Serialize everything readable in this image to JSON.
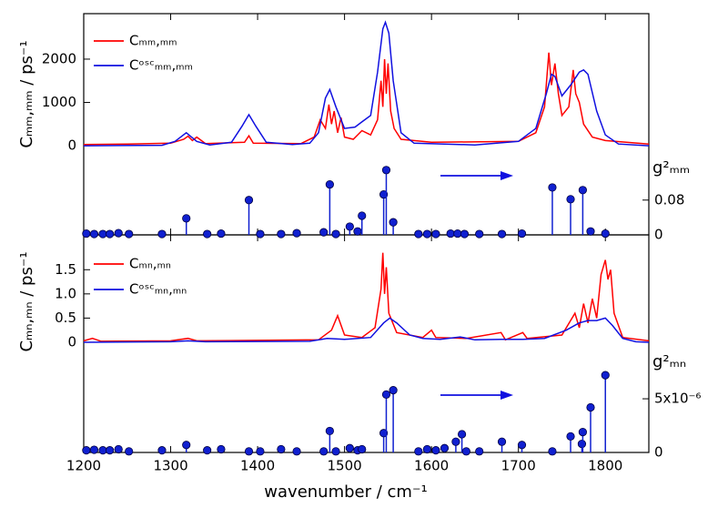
{
  "chart_data": [
    {
      "type": "line",
      "ylabel": "Cₘₘ,ₘₘ / ps⁻¹",
      "ylim": [
        -250,
        3050
      ],
      "yticks": [
        0,
        1000,
        2000
      ],
      "series": [
        {
          "name": "Cₘₘ,ₘₘ",
          "color": "#ff0000",
          "x": [
            1200,
            1250,
            1300,
            1315,
            1320,
            1325,
            1330,
            1340,
            1385,
            1390,
            1395,
            1450,
            1465,
            1472,
            1478,
            1482,
            1485,
            1488,
            1492,
            1496,
            1500,
            1510,
            1520,
            1530,
            1538,
            1542,
            1544,
            1546,
            1548,
            1550,
            1553,
            1557,
            1565,
            1600,
            1700,
            1720,
            1730,
            1735,
            1738,
            1742,
            1746,
            1750,
            1758,
            1763,
            1766,
            1770,
            1775,
            1785,
            1800,
            1850
          ],
          "values": [
            30,
            40,
            60,
            150,
            220,
            120,
            200,
            50,
            80,
            230,
            60,
            50,
            200,
            600,
            400,
            950,
            500,
            800,
            300,
            650,
            200,
            150,
            350,
            250,
            600,
            1500,
            900,
            2000,
            1200,
            1900,
            800,
            400,
            150,
            80,
            100,
            300,
            900,
            2150,
            1400,
            1900,
            1200,
            700,
            900,
            1750,
            1200,
            1000,
            500,
            200,
            120,
            40
          ]
        },
        {
          "name": "Cᵒˢᶜₘₘ,ₘₘ",
          "color": "#1010e0",
          "x": [
            1200,
            1290,
            1305,
            1318,
            1330,
            1345,
            1370,
            1382,
            1390,
            1398,
            1410,
            1440,
            1460,
            1470,
            1478,
            1483,
            1490,
            1500,
            1512,
            1520,
            1530,
            1538,
            1544,
            1547,
            1551,
            1556,
            1565,
            1580,
            1650,
            1700,
            1720,
            1732,
            1738,
            1742,
            1750,
            1760,
            1770,
            1775,
            1780,
            1790,
            1800,
            1815,
            1850
          ],
          "values": [
            0,
            10,
            100,
            300,
            100,
            20,
            80,
            450,
            720,
            450,
            80,
            30,
            60,
            300,
            1100,
            1300,
            900,
            400,
            430,
            550,
            700,
            1700,
            2700,
            2850,
            2600,
            1500,
            300,
            60,
            20,
            100,
            400,
            1200,
            1650,
            1600,
            1150,
            1400,
            1700,
            1750,
            1650,
            800,
            250,
            40,
            0
          ]
        }
      ]
    },
    {
      "type": "stem",
      "ylabel": "g²ₘₘ",
      "ylim": [
        0,
        0.18
      ],
      "yticks": [
        0,
        0.08
      ],
      "color": "#1020d0",
      "x": [
        1203,
        1212,
        1222,
        1230,
        1240,
        1252,
        1290,
        1318,
        1342,
        1358,
        1390,
        1403,
        1427,
        1445,
        1476,
        1483,
        1490,
        1506,
        1515,
        1520,
        1545,
        1548,
        1556,
        1585,
        1595,
        1605,
        1622,
        1630,
        1638,
        1655,
        1681,
        1704,
        1739,
        1760,
        1774,
        1783,
        1800
      ],
      "values": [
        0.003,
        0.002,
        0.002,
        0.002,
        0.004,
        0.002,
        0.002,
        0.038,
        0.002,
        0.003,
        0.08,
        0.002,
        0.002,
        0.004,
        0.006,
        0.116,
        0.002,
        0.019,
        0.008,
        0.044,
        0.093,
        0.149,
        0.029,
        0.002,
        0.002,
        0.002,
        0.003,
        0.003,
        0.002,
        0.002,
        0.002,
        0.003,
        0.109,
        0.082,
        0.103,
        0.008,
        0.003
      ]
    },
    {
      "type": "line",
      "ylabel": "Cₘₙ,ₘₙ / ps⁻¹",
      "ylim": [
        -0.17,
        2.22
      ],
      "yticks": [
        0,
        0.5,
        {
          "value": 1,
          "label": "1.0"
        },
        1.5
      ],
      "series": [
        {
          "name": "Cₘₙ,ₘₙ",
          "color": "#ff0000",
          "x": [
            1200,
            1210,
            1220,
            1300,
            1320,
            1330,
            1470,
            1485,
            1492,
            1496,
            1500,
            1520,
            1535,
            1542,
            1544,
            1546,
            1548,
            1551,
            1560,
            1590,
            1600,
            1605,
            1640,
            1680,
            1685,
            1705,
            1710,
            1750,
            1765,
            1770,
            1775,
            1780,
            1785,
            1790,
            1795,
            1800,
            1803,
            1806,
            1810,
            1820,
            1850
          ],
          "values": [
            0.03,
            0.08,
            0.02,
            0.03,
            0.08,
            0.03,
            0.05,
            0.25,
            0.55,
            0.35,
            0.15,
            0.1,
            0.3,
            1.1,
            1.85,
            1.0,
            1.55,
            0.6,
            0.2,
            0.1,
            0.25,
            0.1,
            0.08,
            0.2,
            0.05,
            0.2,
            0.08,
            0.15,
            0.6,
            0.3,
            0.8,
            0.4,
            0.9,
            0.5,
            1.4,
            1.7,
            1.3,
            1.5,
            0.6,
            0.1,
            0.03
          ]
        },
        {
          "name": "Cᵒˢᶜₘₙ,ₘₙ",
          "color": "#1010e0",
          "x": [
            1200,
            1300,
            1320,
            1340,
            1460,
            1480,
            1500,
            1530,
            1545,
            1552,
            1560,
            1575,
            1590,
            1610,
            1633,
            1650,
            1680,
            1705,
            1730,
            1755,
            1770,
            1780,
            1790,
            1800,
            1808,
            1820,
            1835,
            1850
          ],
          "values": [
            0,
            0.01,
            0.03,
            0.01,
            0.02,
            0.08,
            0.06,
            0.1,
            0.4,
            0.5,
            0.4,
            0.15,
            0.08,
            0.06,
            0.11,
            0.05,
            0.06,
            0.06,
            0.08,
            0.25,
            0.4,
            0.45,
            0.45,
            0.5,
            0.35,
            0.08,
            0.01,
            0
          ]
        }
      ]
    },
    {
      "type": "stem",
      "ylabel": "g²ₘₙ",
      "ylim": [
        0,
        9.5e-06
      ],
      "yticks": [
        0,
        {
          "value": 5e-06,
          "label": "5x10⁻⁶"
        }
      ],
      "color": "#1020d0",
      "xlabel": "wavenumber / cm⁻¹",
      "xlim": [
        1200,
        1850
      ],
      "xticks": [
        1200,
        1300,
        1400,
        1500,
        1600,
        1700,
        1800
      ],
      "x": [
        1203,
        1212,
        1222,
        1230,
        1240,
        1252,
        1290,
        1318,
        1342,
        1358,
        1390,
        1403,
        1427,
        1445,
        1476,
        1483,
        1490,
        1506,
        1515,
        1520,
        1545,
        1548,
        1556,
        1585,
        1595,
        1605,
        1615,
        1628,
        1635,
        1640,
        1655,
        1681,
        1704,
        1739,
        1760,
        1773,
        1774,
        1783,
        1800
      ],
      "values": [
        2e-07,
        2.5e-07,
        2e-07,
        2e-07,
        3e-07,
        1e-07,
        2e-07,
        7e-07,
        2e-07,
        3e-07,
        1e-07,
        1e-07,
        3e-07,
        1e-07,
        1e-07,
        2e-06,
        1e-07,
        4e-07,
        2e-07,
        3e-07,
        1.8e-06,
        5.4e-06,
        5.8e-06,
        1e-07,
        3e-07,
        2e-07,
        4e-07,
        1e-06,
        1.7e-06,
        1e-07,
        1e-07,
        1e-06,
        7e-07,
        1e-07,
        1.5e-06,
        8e-07,
        1.9e-06,
        4.2e-06,
        7.2e-06
      ]
    }
  ]
}
